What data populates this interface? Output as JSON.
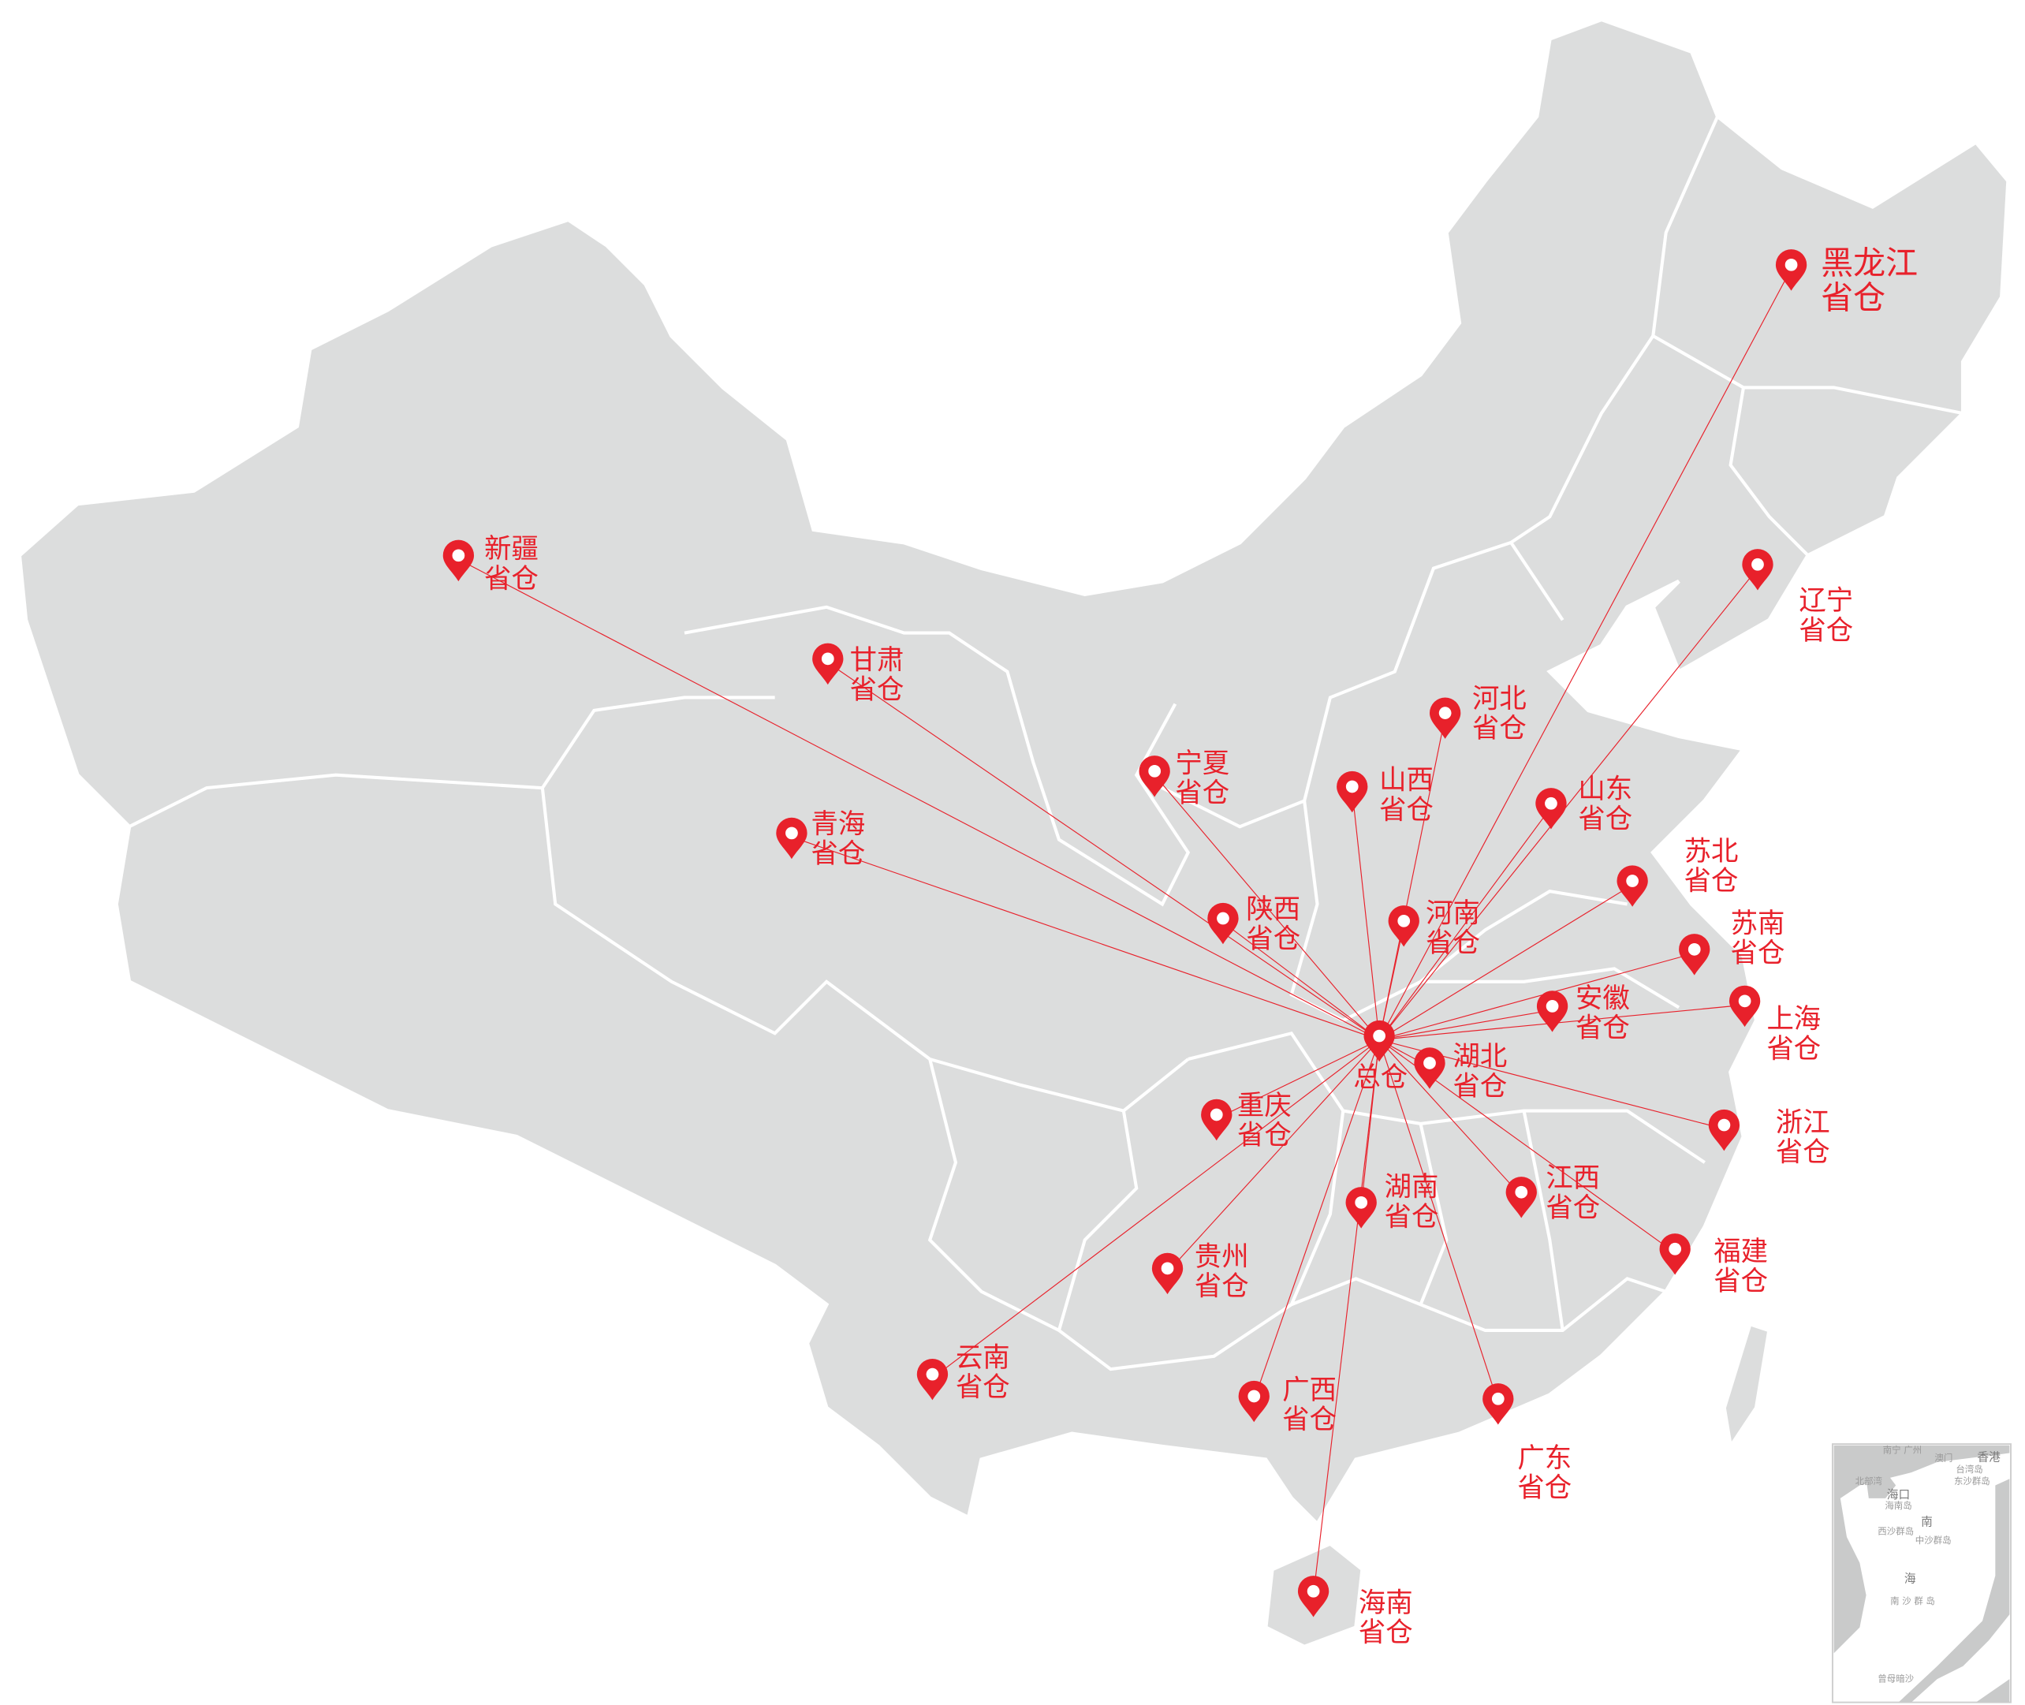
{
  "colors": {
    "land": "#dcdddd",
    "border": "#ffffff",
    "accent": "#e8212b",
    "inset_land": "#c9caca"
  },
  "hub": {
    "label": "总仓",
    "icon": "map-pin-icon"
  },
  "warehouses": [
    {
      "id": "heilongjiang",
      "name": "黑龙江",
      "suffix": "省仓"
    },
    {
      "id": "liaoning",
      "name": "辽宁",
      "suffix": "省仓"
    },
    {
      "id": "xinjiang",
      "name": "新疆",
      "suffix": "省仓"
    },
    {
      "id": "gansu",
      "name": "甘肃",
      "suffix": "省仓"
    },
    {
      "id": "ningxia",
      "name": "宁夏",
      "suffix": "省仓"
    },
    {
      "id": "qinghai",
      "name": "青海",
      "suffix": "省仓"
    },
    {
      "id": "hebei",
      "name": "河北",
      "suffix": "省仓"
    },
    {
      "id": "shanxi",
      "name": "山西",
      "suffix": "省仓"
    },
    {
      "id": "shandong",
      "name": "山东",
      "suffix": "省仓"
    },
    {
      "id": "subei",
      "name": "苏北",
      "suffix": "省仓"
    },
    {
      "id": "shaanxi",
      "name": "陕西",
      "suffix": "省仓"
    },
    {
      "id": "henan",
      "name": "河南",
      "suffix": "省仓"
    },
    {
      "id": "sunan",
      "name": "苏南",
      "suffix": "省仓"
    },
    {
      "id": "anhui",
      "name": "安徽",
      "suffix": "省仓"
    },
    {
      "id": "shanghai",
      "name": "上海",
      "suffix": "省仓"
    },
    {
      "id": "hubei",
      "name": "湖北",
      "suffix": "省仓"
    },
    {
      "id": "chongqing",
      "name": "重庆",
      "suffix": "省仓"
    },
    {
      "id": "zhejiang",
      "name": "浙江",
      "suffix": "省仓"
    },
    {
      "id": "jiangxi",
      "name": "江西",
      "suffix": "省仓"
    },
    {
      "id": "hunan",
      "name": "湖南",
      "suffix": "省仓"
    },
    {
      "id": "guizhou",
      "name": "贵州",
      "suffix": "省仓"
    },
    {
      "id": "fujian",
      "name": "福建",
      "suffix": "省仓"
    },
    {
      "id": "yunnan",
      "name": "云南",
      "suffix": "省仓"
    },
    {
      "id": "guangxi",
      "name": "广西",
      "suffix": "省仓"
    },
    {
      "id": "guangdong",
      "name": "广东",
      "suffix": "省仓"
    },
    {
      "id": "hainan",
      "name": "海南",
      "suffix": "省仓"
    }
  ],
  "inset": {
    "labels": [
      "南宁 广州",
      "澳门",
      "香港",
      "台湾岛",
      "东沙群岛",
      "北部湾",
      "海口",
      "海南岛",
      "南",
      "西沙群岛",
      "中沙群岛",
      "海",
      "南 沙 群 岛",
      "曾母暗沙"
    ]
  }
}
